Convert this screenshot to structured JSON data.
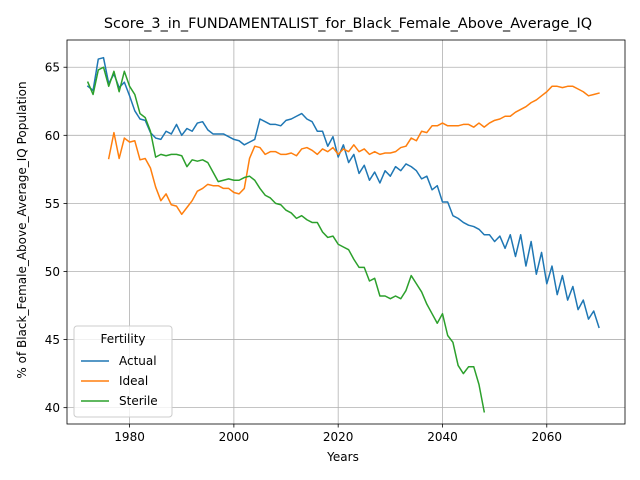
{
  "chart_data": {
    "type": "line",
    "title": "Score_3_in_FUNDAMENTALIST_for_Black_Female_Above_Average_IQ",
    "xlabel": "Years",
    "ylabel": "% of Black_Female_Above_Average_IQ Population",
    "xlim": [
      1968,
      2075
    ],
    "ylim": [
      38.8,
      67.0
    ],
    "xticks": [
      1980,
      2000,
      2020,
      2040,
      2060
    ],
    "yticks": [
      40,
      45,
      50,
      55,
      60,
      65
    ],
    "grid": true,
    "legend": {
      "title": "Fertility",
      "placement": "lower-left"
    },
    "series": [
      {
        "name": "Actual",
        "color": "#1f77b4",
        "x": [
          1972,
          1973,
          1974,
          1975,
          1976,
          1977,
          1978,
          1979,
          1980,
          1981,
          1982,
          1983,
          1984,
          1985,
          1986,
          1987,
          1988,
          1989,
          1990,
          1991,
          1992,
          1993,
          1994,
          1995,
          1996,
          1997,
          1998,
          1999,
          2000,
          2001,
          2002,
          2003,
          2004,
          2005,
          2006,
          2007,
          2008,
          2009,
          2010,
          2011,
          2012,
          2013,
          2014,
          2015,
          2016,
          2017,
          2018,
          2019,
          2020,
          2021,
          2022,
          2023,
          2024,
          2025,
          2026,
          2027,
          2028,
          2029,
          2030,
          2031,
          2032,
          2033,
          2034,
          2035,
          2036,
          2037,
          2038,
          2039,
          2040,
          2041,
          2042,
          2043,
          2044,
          2045,
          2046,
          2047,
          2048,
          2049,
          2050,
          2051,
          2052,
          2053,
          2054,
          2055,
          2056,
          2057,
          2058,
          2059,
          2060,
          2061,
          2062,
          2063,
          2064,
          2065,
          2066,
          2067,
          2068,
          2069,
          2070
        ],
        "values": [
          63.6,
          63.3,
          65.6,
          65.7,
          63.8,
          64.5,
          63.5,
          63.9,
          62.9,
          61.8,
          61.2,
          61.1,
          60.2,
          59.8,
          59.7,
          60.3,
          60.1,
          60.8,
          60.0,
          60.5,
          60.3,
          60.9,
          61.0,
          60.4,
          60.1,
          60.1,
          60.1,
          59.9,
          59.7,
          59.6,
          59.3,
          59.5,
          59.7,
          61.2,
          61.0,
          60.8,
          60.8,
          60.7,
          61.1,
          61.2,
          61.4,
          61.6,
          61.2,
          61.0,
          60.3,
          60.3,
          59.2,
          59.9,
          58.4,
          59.3,
          58.0,
          58.6,
          57.2,
          57.8,
          56.7,
          57.3,
          56.5,
          57.4,
          57.0,
          57.7,
          57.4,
          57.9,
          57.7,
          57.4,
          56.8,
          57.0,
          56.0,
          56.3,
          55.1,
          55.1,
          54.1,
          53.9,
          53.6,
          53.4,
          53.3,
          53.1,
          52.7,
          52.7,
          52.2,
          52.6,
          51.7,
          52.7,
          51.1,
          52.7,
          50.4,
          52.2,
          49.8,
          51.4,
          49.1,
          50.4,
          48.3,
          49.7,
          47.9,
          48.9,
          47.2,
          47.9,
          46.5,
          47.1,
          45.9
        ]
      },
      {
        "name": "Ideal",
        "color": "#ff7f0e",
        "x": [
          1976,
          1977,
          1978,
          1979,
          1980,
          1981,
          1982,
          1983,
          1984,
          1985,
          1986,
          1987,
          1988,
          1989,
          1990,
          1991,
          1992,
          1993,
          1994,
          1995,
          1996,
          1997,
          1998,
          1999,
          2000,
          2001,
          2002,
          2003,
          2004,
          2005,
          2006,
          2007,
          2008,
          2009,
          2010,
          2011,
          2012,
          2013,
          2014,
          2015,
          2016,
          2017,
          2018,
          2019,
          2020,
          2021,
          2022,
          2023,
          2024,
          2025,
          2026,
          2027,
          2028,
          2029,
          2030,
          2031,
          2032,
          2033,
          2034,
          2035,
          2036,
          2037,
          2038,
          2039,
          2040,
          2041,
          2042,
          2043,
          2044,
          2045,
          2046,
          2047,
          2048,
          2049,
          2050,
          2051,
          2052,
          2053,
          2054,
          2055,
          2056,
          2057,
          2058,
          2059,
          2060,
          2061,
          2062,
          2063,
          2064,
          2065,
          2066,
          2067,
          2068,
          2069,
          2070
        ],
        "values": [
          58.3,
          60.2,
          58.3,
          59.8,
          59.5,
          59.6,
          58.2,
          58.3,
          57.6,
          56.2,
          55.2,
          55.7,
          54.9,
          54.8,
          54.2,
          54.7,
          55.2,
          55.9,
          56.1,
          56.4,
          56.3,
          56.3,
          56.1,
          56.1,
          55.8,
          55.7,
          56.1,
          58.3,
          59.2,
          59.1,
          58.6,
          58.8,
          58.8,
          58.6,
          58.6,
          58.7,
          58.5,
          59.0,
          59.1,
          58.9,
          58.6,
          59.0,
          58.8,
          59.1,
          58.6,
          59.0,
          58.8,
          59.3,
          58.8,
          59.0,
          58.6,
          58.8,
          58.6,
          58.7,
          58.7,
          58.8,
          59.1,
          59.2,
          59.8,
          59.6,
          60.3,
          60.2,
          60.7,
          60.7,
          60.9,
          60.7,
          60.7,
          60.7,
          60.8,
          60.8,
          60.6,
          60.9,
          60.6,
          60.9,
          61.1,
          61.2,
          61.4,
          61.4,
          61.7,
          61.9,
          62.1,
          62.4,
          62.6,
          62.9,
          63.2,
          63.6,
          63.6,
          63.5,
          63.6,
          63.6,
          63.4,
          63.2,
          62.9,
          63.0,
          63.1
        ]
      },
      {
        "name": "Sterile",
        "color": "#2ca02c",
        "x": [
          1972,
          1973,
          1974,
          1975,
          1976,
          1977,
          1978,
          1979,
          1980,
          1981,
          1982,
          1983,
          1984,
          1985,
          1986,
          1987,
          1988,
          1989,
          1990,
          1991,
          1992,
          1993,
          1994,
          1995,
          1996,
          1997,
          1998,
          1999,
          2000,
          2001,
          2002,
          2003,
          2004,
          2005,
          2006,
          2007,
          2008,
          2009,
          2010,
          2011,
          2012,
          2013,
          2014,
          2015,
          2016,
          2017,
          2018,
          2019,
          2020,
          2021,
          2022,
          2023,
          2024,
          2025,
          2026,
          2027,
          2028,
          2029,
          2030,
          2031,
          2032,
          2033,
          2034,
          2035,
          2036,
          2037,
          2038,
          2039,
          2040,
          2041,
          2042,
          2043,
          2044,
          2045,
          2046,
          2047,
          2048
        ],
        "values": [
          63.9,
          63.0,
          64.8,
          65.0,
          63.6,
          64.7,
          63.2,
          64.7,
          63.6,
          63.0,
          61.6,
          61.3,
          60.3,
          58.4,
          58.6,
          58.5,
          58.6,
          58.6,
          58.5,
          57.7,
          58.2,
          58.1,
          58.2,
          58.0,
          57.3,
          56.6,
          56.7,
          56.8,
          56.7,
          56.7,
          56.9,
          57.0,
          56.7,
          56.1,
          55.6,
          55.4,
          55.0,
          54.9,
          54.5,
          54.3,
          53.9,
          54.1,
          53.8,
          53.6,
          53.6,
          52.9,
          52.5,
          52.6,
          52.0,
          51.8,
          51.6,
          50.9,
          50.3,
          50.3,
          49.3,
          49.5,
          48.2,
          48.2,
          48.0,
          48.2,
          48.0,
          48.6,
          49.7,
          49.1,
          48.5,
          47.6,
          46.9,
          46.2,
          46.9,
          45.3,
          44.8,
          43.1,
          42.5,
          43.0,
          43.0,
          41.7,
          39.7
        ]
      }
    ]
  }
}
